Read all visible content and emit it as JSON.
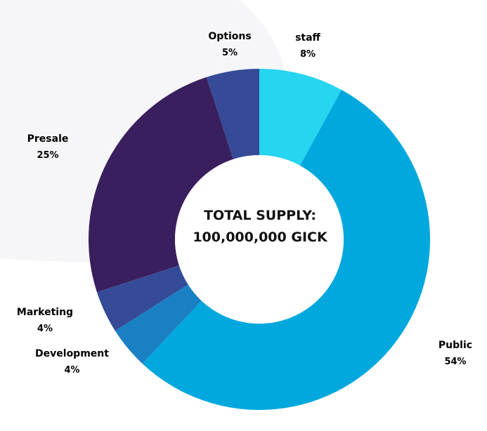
{
  "chart_data": {
    "type": "pie",
    "center_text": [
      "TOTAL SUPPLY:",
      "100,000,000 GICK"
    ],
    "slices": [
      {
        "label": "staff",
        "value": 8,
        "display": "8%",
        "color": "#26d5f0"
      },
      {
        "label": "Public",
        "value": 54,
        "display": "54%",
        "color": "#00a8de"
      },
      {
        "label": "Development",
        "value": 4,
        "display": "4%",
        "color": "#1a80c4"
      },
      {
        "label": "Marketing",
        "value": 4,
        "display": "4%",
        "color": "#354b97"
      },
      {
        "label": "Presale",
        "value": 25,
        "display": "25%",
        "color": "#3a1f5f"
      },
      {
        "label": "Options",
        "value": 5,
        "display": "5%",
        "color": "#354b97"
      }
    ]
  }
}
